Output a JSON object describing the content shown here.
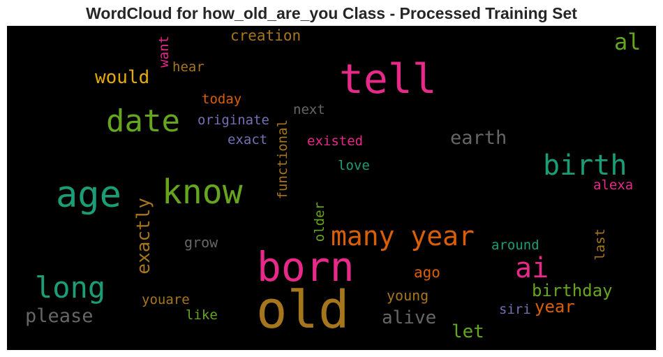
{
  "title": "WordCloud for how_old_are_you Class - Processed Training Set",
  "chart_data": {
    "type": "wordcloud",
    "background": "#000000",
    "words": [
      {
        "text": "old",
        "color": "#a6761d",
        "vertical": false
      },
      {
        "text": "born",
        "color": "#e7298a",
        "vertical": false
      },
      {
        "text": "tell",
        "color": "#e7298a",
        "vertical": false
      },
      {
        "text": "age",
        "color": "#1b9e77",
        "vertical": false
      },
      {
        "text": "know",
        "color": "#66a61e",
        "vertical": false
      },
      {
        "text": "date",
        "color": "#66a61e",
        "vertical": false
      },
      {
        "text": "many year",
        "color": "#d95f02",
        "vertical": false
      },
      {
        "text": "birth",
        "color": "#1b9e77",
        "vertical": false
      },
      {
        "text": "long",
        "color": "#1b9e77",
        "vertical": false
      },
      {
        "text": "ai",
        "color": "#e7298a",
        "vertical": false
      },
      {
        "text": "al",
        "color": "#66a61e",
        "vertical": false
      },
      {
        "text": "exactly",
        "color": "#a6761d",
        "vertical": true
      },
      {
        "text": "please",
        "color": "#666666",
        "vertical": false
      },
      {
        "text": "would",
        "color": "#e6ab02",
        "vertical": false
      },
      {
        "text": "earth",
        "color": "#666666",
        "vertical": false
      },
      {
        "text": "alive",
        "color": "#666666",
        "vertical": false
      },
      {
        "text": "birthday",
        "color": "#66a61e",
        "vertical": false
      },
      {
        "text": "year",
        "color": "#d95f02",
        "vertical": false
      },
      {
        "text": "let",
        "color": "#66a61e",
        "vertical": false
      },
      {
        "text": "creation",
        "color": "#a6761d",
        "vertical": false
      },
      {
        "text": "hear",
        "color": "#a6761d",
        "vertical": false
      },
      {
        "text": "want",
        "color": "#e7298a",
        "vertical": true
      },
      {
        "text": "today",
        "color": "#d95f02",
        "vertical": false
      },
      {
        "text": "originate",
        "color": "#7570b3",
        "vertical": false
      },
      {
        "text": "next",
        "color": "#666666",
        "vertical": false
      },
      {
        "text": "exact",
        "color": "#7570b3",
        "vertical": false
      },
      {
        "text": "functional",
        "color": "#a6761d",
        "vertical": true
      },
      {
        "text": "existed",
        "color": "#e7298a",
        "vertical": false
      },
      {
        "text": "love",
        "color": "#1b9e77",
        "vertical": false
      },
      {
        "text": "alexa",
        "color": "#e7298a",
        "vertical": false
      },
      {
        "text": "older",
        "color": "#66a61e",
        "vertical": true
      },
      {
        "text": "grow",
        "color": "#666666",
        "vertical": false
      },
      {
        "text": "around",
        "color": "#1b9e77",
        "vertical": false
      },
      {
        "text": "last",
        "color": "#a6761d",
        "vertical": true
      },
      {
        "text": "ago",
        "color": "#d95f02",
        "vertical": false
      },
      {
        "text": "youare",
        "color": "#a6761d",
        "vertical": false
      },
      {
        "text": "young",
        "color": "#a6761d",
        "vertical": false
      },
      {
        "text": "siri",
        "color": "#7570b3",
        "vertical": false
      },
      {
        "text": "like",
        "color": "#66a61e",
        "vertical": false
      }
    ]
  }
}
